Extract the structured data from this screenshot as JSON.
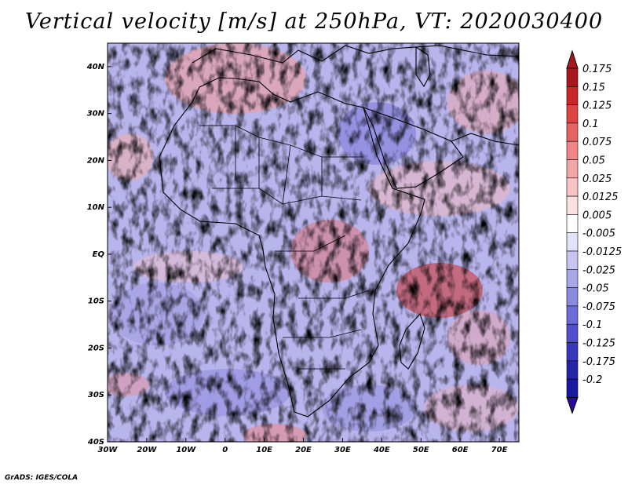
{
  "title": "Vertical velocity [m/s] at 250hPa, VT: 2020030400",
  "credit": "GrADS: IGES/COLA",
  "map": {
    "lon_range": [
      -30,
      75
    ],
    "lat_range": [
      -40,
      45
    ],
    "x_ticks": [
      {
        "lon": -30,
        "label": "30W"
      },
      {
        "lon": -20,
        "label": "20W"
      },
      {
        "lon": -10,
        "label": "10W"
      },
      {
        "lon": 0,
        "label": "0"
      },
      {
        "lon": 10,
        "label": "10E"
      },
      {
        "lon": 20,
        "label": "20E"
      },
      {
        "lon": 30,
        "label": "30E"
      },
      {
        "lon": 40,
        "label": "40E"
      },
      {
        "lon": 50,
        "label": "50E"
      },
      {
        "lon": 60,
        "label": "60E"
      },
      {
        "lon": 70,
        "label": "70E"
      }
    ],
    "y_ticks": [
      {
        "lat": 40,
        "label": "40N"
      },
      {
        "lat": 30,
        "label": "30N"
      },
      {
        "lat": 20,
        "label": "20N"
      },
      {
        "lat": 10,
        "label": "10N"
      },
      {
        "lat": 0,
        "label": "EQ"
      },
      {
        "lat": -10,
        "label": "10S"
      },
      {
        "lat": -20,
        "label": "20S"
      },
      {
        "lat": -30,
        "label": "30S"
      },
      {
        "lat": -40,
        "label": "40S"
      }
    ]
  },
  "colorbar": {
    "levels": [
      {
        "label": "0.175",
        "color": "#a8181e"
      },
      {
        "label": "0.15",
        "color": "#c8282a"
      },
      {
        "label": "0.125",
        "color": "#dd4444"
      },
      {
        "label": "0.1",
        "color": "#e86464"
      },
      {
        "label": "0.075",
        "color": "#f08686"
      },
      {
        "label": "0.05",
        "color": "#f4a6a6"
      },
      {
        "label": "0.025",
        "color": "#f8c4c4"
      },
      {
        "label": "0.0125",
        "color": "#fbe0e0"
      },
      {
        "label": "0.005",
        "color": "#ffffff"
      },
      {
        "label": "-0.005",
        "color": "#e2e2f8"
      },
      {
        "label": "-0.0125",
        "color": "#c6c6f0"
      },
      {
        "label": "-0.025",
        "color": "#a8a8e8"
      },
      {
        "label": "-0.05",
        "color": "#8a8ae0"
      },
      {
        "label": "-0.075",
        "color": "#6c6cd6"
      },
      {
        "label": "-0.1",
        "color": "#5050cc"
      },
      {
        "label": "-0.125",
        "color": "#3838bc"
      },
      {
        "label": "-0.175",
        "color": "#2424a8"
      },
      {
        "label": "-0.2",
        "color": "#1818a0"
      }
    ],
    "top_arrow_color": "#a8181e",
    "bottom_arrow_color": "#2a0a9a"
  }
}
